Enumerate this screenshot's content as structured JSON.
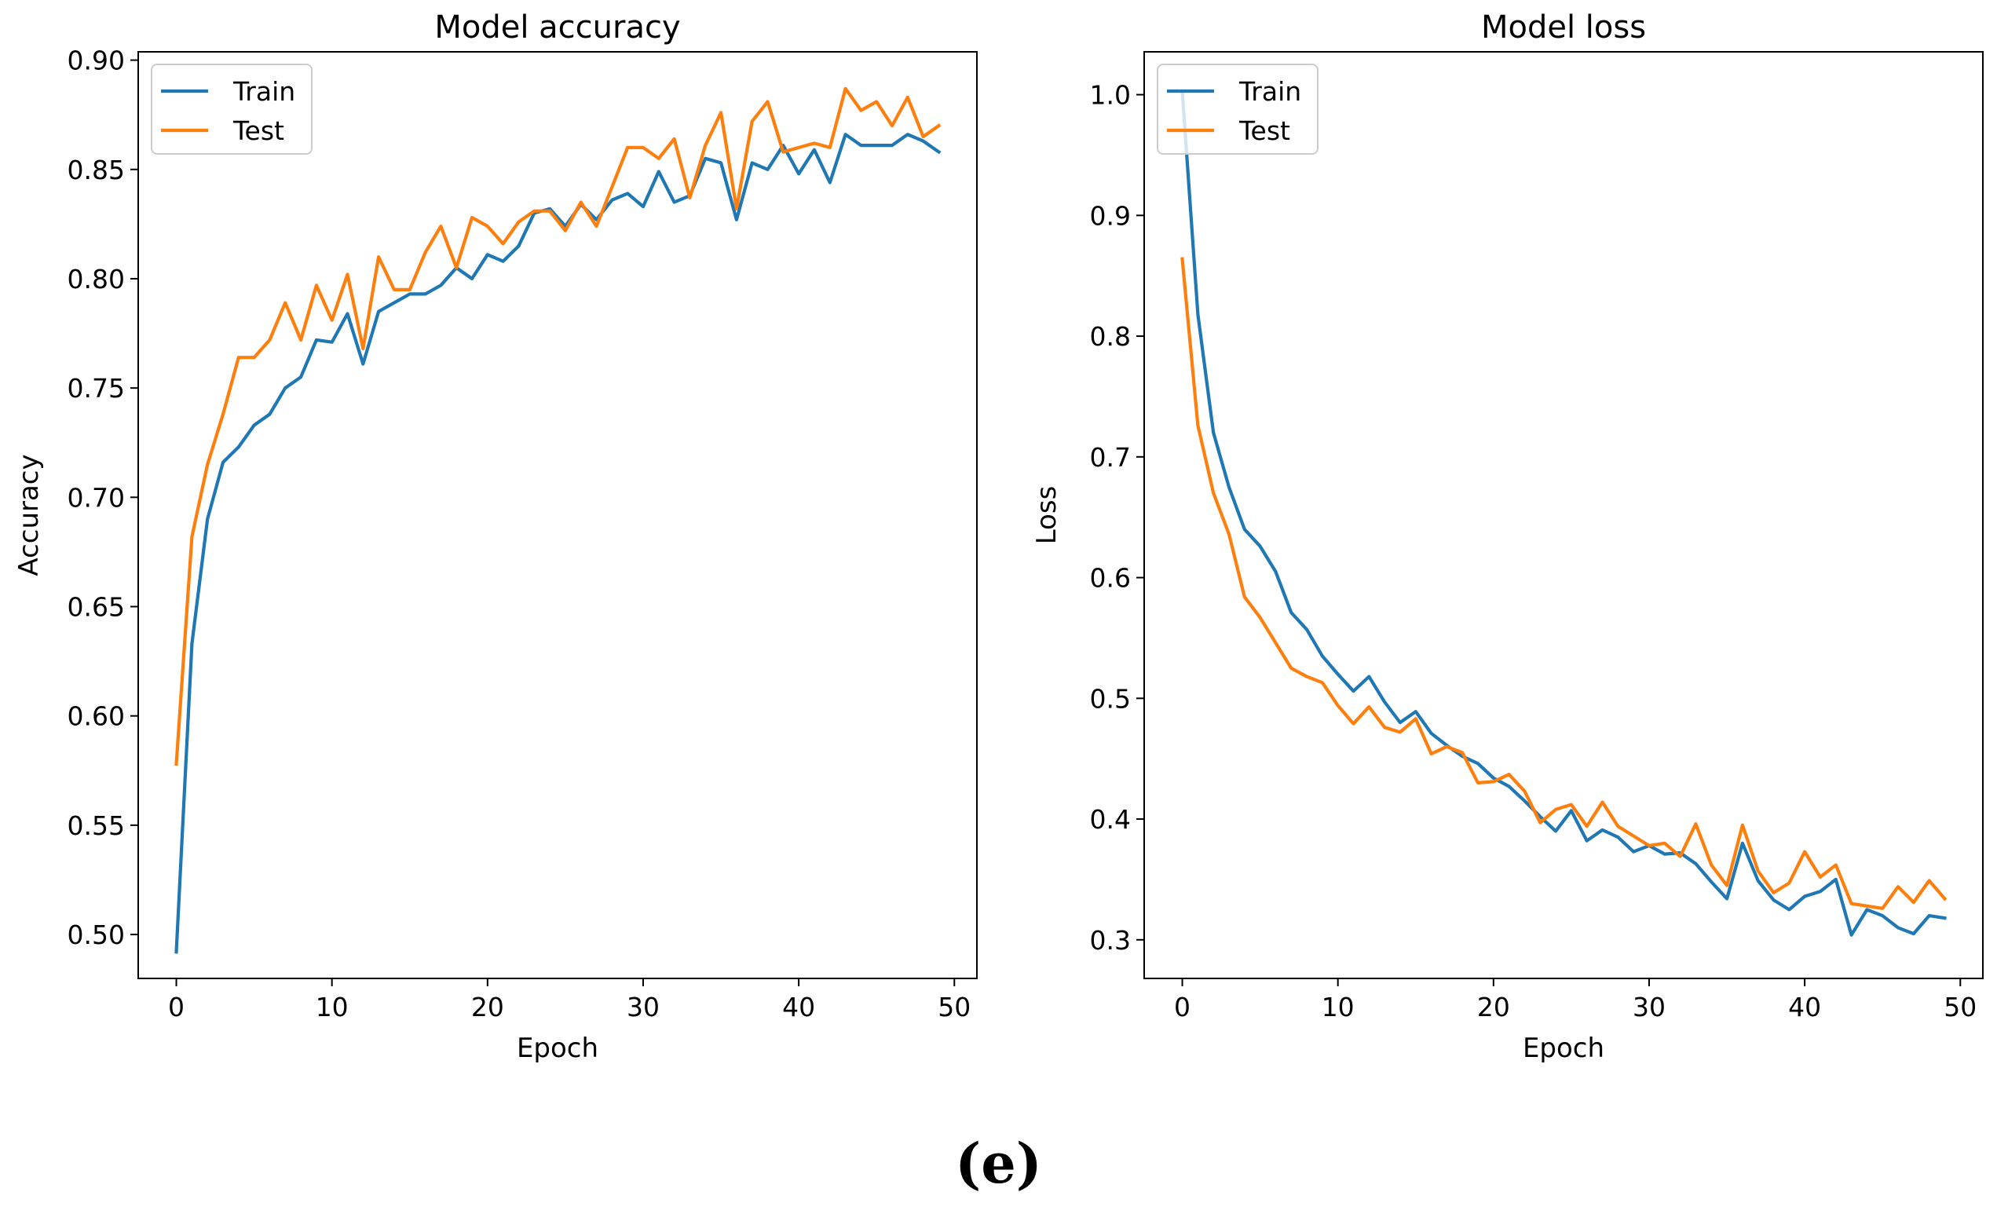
{
  "figure_label": "(e)",
  "colors": {
    "train": "#1f77b4",
    "test": "#ff7f0e"
  },
  "chart_data": [
    {
      "type": "line",
      "title": "Model accuracy",
      "xlabel": "Epoch",
      "ylabel": "Accuracy",
      "xlim": [
        -2.45,
        51.45
      ],
      "ylim": [
        0.4799,
        0.9038
      ],
      "xticks": [
        0,
        10,
        20,
        30,
        40,
        50
      ],
      "yticks": [
        0.5,
        0.55,
        0.6,
        0.65,
        0.7,
        0.75,
        0.8,
        0.85,
        0.9
      ],
      "xtick_labels": [
        "0",
        "10",
        "20",
        "30",
        "40",
        "50"
      ],
      "ytick_labels": [
        "0.50",
        "0.55",
        "0.60",
        "0.65",
        "0.70",
        "0.75",
        "0.80",
        "0.85",
        "0.90"
      ],
      "legend": {
        "position": "upper-left",
        "labels": [
          "Train",
          "Test"
        ]
      },
      "grid": false,
      "x": [
        0,
        1,
        2,
        3,
        4,
        5,
        6,
        7,
        8,
        9,
        10,
        11,
        12,
        13,
        14,
        15,
        16,
        17,
        18,
        19,
        20,
        21,
        22,
        23,
        24,
        25,
        26,
        27,
        28,
        29,
        30,
        31,
        32,
        33,
        34,
        35,
        36,
        37,
        38,
        39,
        40,
        41,
        42,
        43,
        44,
        45,
        46,
        47,
        48,
        49
      ],
      "series": [
        {
          "name": "Train",
          "color": "#1f77b4",
          "values": [
            0.492,
            0.633,
            0.69,
            0.716,
            0.723,
            0.733,
            0.738,
            0.75,
            0.755,
            0.772,
            0.771,
            0.784,
            0.761,
            0.785,
            0.789,
            0.793,
            0.793,
            0.797,
            0.805,
            0.8,
            0.811,
            0.808,
            0.815,
            0.83,
            0.832,
            0.824,
            0.834,
            0.827,
            0.836,
            0.839,
            0.833,
            0.849,
            0.835,
            0.838,
            0.855,
            0.853,
            0.827,
            0.853,
            0.85,
            0.861,
            0.848,
            0.859,
            0.844,
            0.866,
            0.861,
            0.861,
            0.861,
            0.866,
            0.863,
            0.858
          ]
        },
        {
          "name": "Test",
          "color": "#ff7f0e",
          "values": [
            0.578,
            0.682,
            0.715,
            0.738,
            0.764,
            0.764,
            0.772,
            0.789,
            0.772,
            0.797,
            0.781,
            0.802,
            0.768,
            0.81,
            0.795,
            0.795,
            0.812,
            0.824,
            0.805,
            0.828,
            0.824,
            0.816,
            0.826,
            0.831,
            0.831,
            0.822,
            0.835,
            0.824,
            0.842,
            0.86,
            0.86,
            0.855,
            0.864,
            0.837,
            0.861,
            0.876,
            0.832,
            0.872,
            0.881,
            0.858,
            0.86,
            0.862,
            0.86,
            0.887,
            0.877,
            0.881,
            0.87,
            0.883,
            0.865,
            0.87
          ]
        }
      ]
    },
    {
      "type": "line",
      "title": "Model loss",
      "xlabel": "Epoch",
      "ylabel": "Loss",
      "xlim": [
        -2.45,
        51.45
      ],
      "ylim": [
        0.268,
        1.0355
      ],
      "xticks": [
        0,
        10,
        20,
        30,
        40,
        50
      ],
      "yticks": [
        0.3,
        0.4,
        0.5,
        0.6,
        0.7,
        0.8,
        0.9,
        1.0
      ],
      "xtick_labels": [
        "0",
        "10",
        "20",
        "30",
        "40",
        "50"
      ],
      "ytick_labels": [
        "0.3",
        "0.4",
        "0.5",
        "0.6",
        "0.7",
        "0.8",
        "0.9",
        "1.0"
      ],
      "legend": {
        "position": "upper-left",
        "labels": [
          "Train",
          "Test"
        ]
      },
      "grid": false,
      "x": [
        0,
        1,
        2,
        3,
        4,
        5,
        6,
        7,
        8,
        9,
        10,
        11,
        12,
        13,
        14,
        15,
        16,
        17,
        18,
        19,
        20,
        21,
        22,
        23,
        24,
        25,
        26,
        27,
        28,
        29,
        30,
        31,
        32,
        33,
        34,
        35,
        36,
        37,
        38,
        39,
        40,
        41,
        42,
        43,
        44,
        45,
        46,
        47,
        48,
        49
      ],
      "series": [
        {
          "name": "Train",
          "color": "#1f77b4",
          "values": [
            1.003,
            0.818,
            0.72,
            0.675,
            0.64,
            0.626,
            0.605,
            0.571,
            0.557,
            0.535,
            0.52,
            0.506,
            0.518,
            0.497,
            0.48,
            0.489,
            0.471,
            0.461,
            0.452,
            0.446,
            0.434,
            0.427,
            0.415,
            0.402,
            0.39,
            0.407,
            0.382,
            0.391,
            0.385,
            0.373,
            0.378,
            0.371,
            0.372,
            0.363,
            0.348,
            0.334,
            0.38,
            0.349,
            0.333,
            0.325,
            0.336,
            0.34,
            0.35,
            0.304,
            0.325,
            0.32,
            0.31,
            0.305,
            0.32,
            0.318
          ]
        },
        {
          "name": "Test",
          "color": "#ff7f0e",
          "values": [
            0.864,
            0.726,
            0.67,
            0.636,
            0.584,
            0.567,
            0.546,
            0.525,
            0.518,
            0.513,
            0.494,
            0.479,
            0.493,
            0.476,
            0.472,
            0.483,
            0.454,
            0.46,
            0.455,
            0.43,
            0.431,
            0.437,
            0.423,
            0.397,
            0.408,
            0.412,
            0.394,
            0.414,
            0.394,
            0.386,
            0.378,
            0.38,
            0.369,
            0.396,
            0.362,
            0.345,
            0.395,
            0.357,
            0.339,
            0.347,
            0.373,
            0.352,
            0.362,
            0.33,
            0.328,
            0.326,
            0.344,
            0.331,
            0.349,
            0.334
          ]
        }
      ]
    }
  ]
}
